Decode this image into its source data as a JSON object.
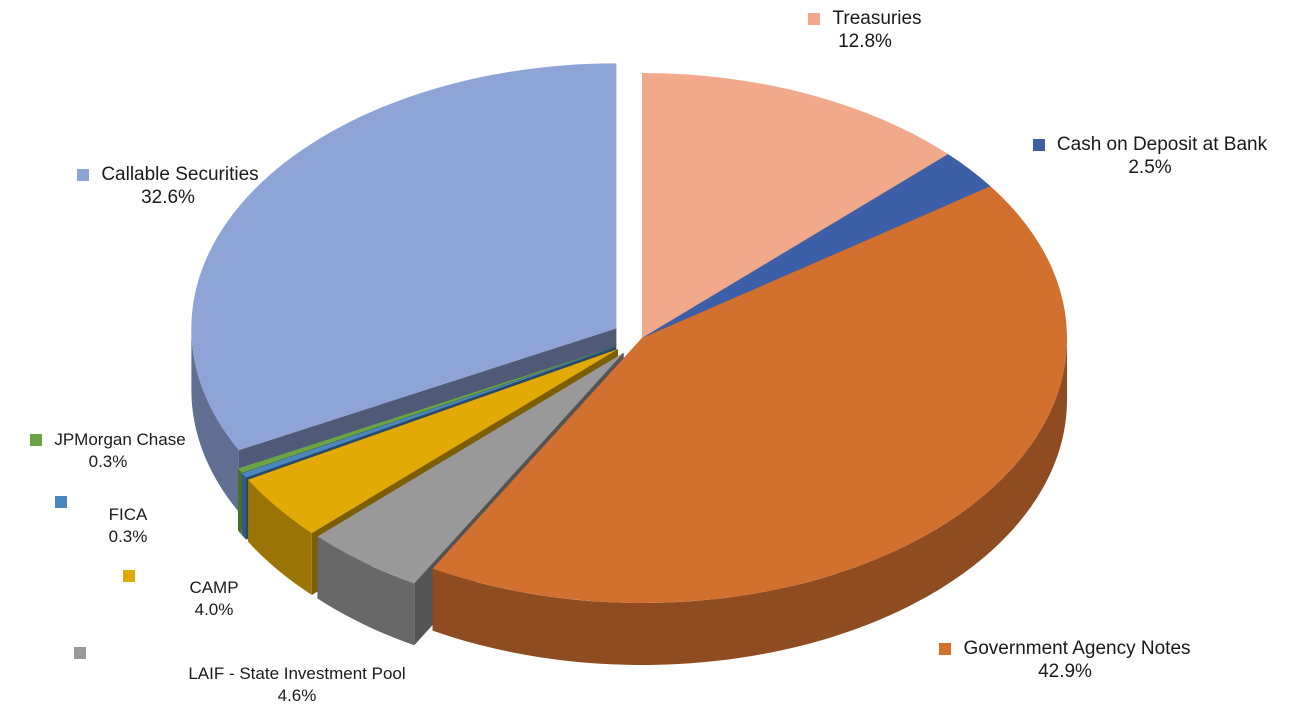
{
  "chart_data": {
    "type": "pie",
    "three_d": true,
    "start": "top, clockwise",
    "exploded": [
      "Callable Securities",
      "LAIF - State Investment Pool",
      "CAMP",
      "FICA",
      "JPMorgan Chase"
    ],
    "legend": "inline data labels next to each slice",
    "slices": [
      {
        "name": "Treasuries",
        "value": 12.8,
        "label": "12.8%",
        "color": "#F2A88A"
      },
      {
        "name": "Cash on Deposit at Bank",
        "value": 2.5,
        "label": "2.5%",
        "color": "#3C5FA8"
      },
      {
        "name": "Government Agency Notes",
        "value": 42.9,
        "label": "42.9%",
        "color": "#D2702F"
      },
      {
        "name": "LAIF - State Investment Pool",
        "value": 4.6,
        "label": "4.6%",
        "color": "#999999"
      },
      {
        "name": "CAMP",
        "value": 4.0,
        "label": "4.0%",
        "color": "#E3AA06"
      },
      {
        "name": "FICA",
        "value": 0.3,
        "label": "0.3%",
        "color": "#4C86BE"
      },
      {
        "name": "JPMorgan Chase",
        "value": 0.3,
        "label": "0.3%",
        "color": "#6AA446"
      },
      {
        "name": "Callable Securities",
        "value": 32.6,
        "label": "32.6%",
        "color": "#8EA4D6"
      }
    ]
  }
}
